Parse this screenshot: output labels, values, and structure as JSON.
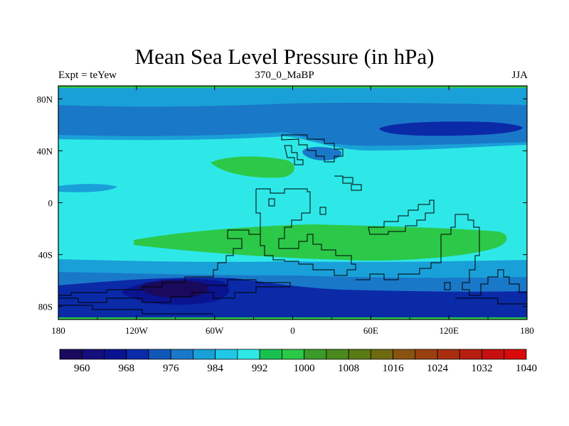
{
  "title": "Mean Sea Level Pressure (in hPa)",
  "left_label": "Expt = teYew",
  "center_label": "370_0_MaBP",
  "right_label": "JJA",
  "x_ticks": [
    "180",
    "120W",
    "60W",
    "0",
    "60E",
    "120E",
    "180"
  ],
  "y_ticks": [
    "80N",
    "40N",
    "0",
    "40S",
    "80S"
  ],
  "colorbar": {
    "labels": [
      "960",
      "968",
      "976",
      "984",
      "992",
      "1000",
      "1008",
      "1016",
      "1024",
      "1032",
      "1040"
    ],
    "colors": [
      "#1a0a5e",
      "#140f7a",
      "#0a1490",
      "#0a2aa8",
      "#1057b8",
      "#1a78c8",
      "#1aa0d8",
      "#20c8e8",
      "#2ee8e8",
      "#18c050",
      "#2cc848",
      "#3a9a2a",
      "#4a8a1c",
      "#5a7a14",
      "#6e6a10",
      "#8a5410",
      "#9a4010",
      "#a82e10",
      "#b81e10",
      "#c81010",
      "#d80a0a"
    ]
  },
  "field_colors": {
    "c960": "#1a0a5e",
    "c968": "#0a1490",
    "c976": "#0a2aa8",
    "c984": "#1a78c8",
    "c992": "#1aa0d8",
    "c1000": "#2ee8e8",
    "c1008": "#2cc848"
  }
}
